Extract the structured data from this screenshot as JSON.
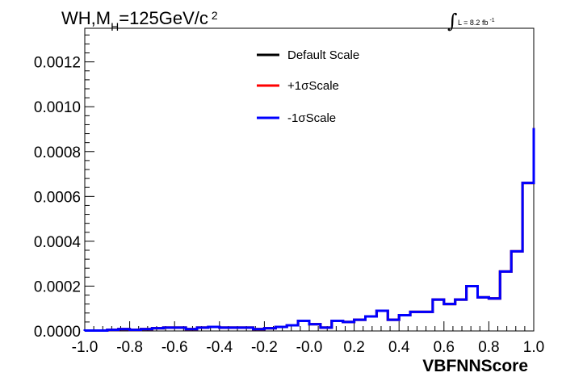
{
  "chart_data": {
    "type": "line",
    "title_main": "WH,M",
    "title_sub": "H",
    "title_rest": "=125GeV/c",
    "title_sup": "2",
    "lumi_label": "L = 8.2 fb",
    "lumi_sup": "-1",
    "xlabel": "VBFNNScore",
    "xlim": [
      -1.0,
      1.0
    ],
    "ylim": [
      0.0,
      0.00135
    ],
    "x_ticks": [
      "-1.0",
      "-0.8",
      "-0.6",
      "-0.4",
      "-0.2",
      "-0.0",
      "0.2",
      "0.4",
      "0.6",
      "0.8",
      "1.0"
    ],
    "y_ticks": [
      "0.0000",
      "0.0002",
      "0.0004",
      "0.0006",
      "0.0008",
      "0.0010",
      "0.0012"
    ],
    "legend_position": "top-center",
    "bin_edges": [
      -1.0,
      -0.95,
      -0.9,
      -0.85,
      -0.8,
      -0.75,
      -0.7,
      -0.65,
      -0.6,
      -0.55,
      -0.5,
      -0.45,
      -0.4,
      -0.35,
      -0.3,
      -0.25,
      -0.2,
      -0.15,
      -0.1,
      -0.05,
      0.0,
      0.05,
      0.1,
      0.15,
      0.2,
      0.25,
      0.3,
      0.35,
      0.4,
      0.45,
      0.5,
      0.55,
      0.6,
      0.65,
      0.7,
      0.75,
      0.8,
      0.85,
      0.9,
      0.95,
      1.0
    ],
    "series": [
      {
        "name": "Default Scale",
        "color": "#000000",
        "values": [
          2e-06,
          2e-06,
          5e-06,
          8e-06,
          5e-06,
          8e-06,
          1.2e-05,
          1.5e-05,
          1.5e-05,
          8e-06,
          1.5e-05,
          1.8e-05,
          1.5e-05,
          1.5e-05,
          1.5e-05,
          8e-06,
          1.2e-05,
          1.8e-05,
          2.5e-05,
          4.5e-05,
          3e-05,
          1.5e-05,
          4.5e-05,
          4e-05,
          5e-05,
          6.5e-05,
          9e-05,
          5e-05,
          7e-05,
          8.5e-05,
          8.5e-05,
          0.00014,
          0.00012,
          0.00014,
          0.0002,
          0.00015,
          0.000145,
          0.000265,
          0.000355,
          0.00066,
          0.000905
        ]
      },
      {
        "name": "+1σScale",
        "color": "#ff0000",
        "values": [
          2e-06,
          2e-06,
          5e-06,
          8e-06,
          5e-06,
          8e-06,
          1.2e-05,
          1.5e-05,
          1.5e-05,
          8e-06,
          1.5e-05,
          1.8e-05,
          1.5e-05,
          1.5e-05,
          1.5e-05,
          8e-06,
          1.2e-05,
          1.8e-05,
          2.5e-05,
          4.5e-05,
          3e-05,
          1.5e-05,
          4.5e-05,
          4e-05,
          5e-05,
          6.5e-05,
          9e-05,
          5e-05,
          7e-05,
          8.5e-05,
          8.5e-05,
          0.00014,
          0.00012,
          0.00014,
          0.0002,
          0.00015,
          0.000145,
          0.000265,
          0.000355,
          0.00066,
          0.000905
        ]
      },
      {
        "name": "-1σScale",
        "color": "#0000ff",
        "values": [
          2e-06,
          2e-06,
          5e-06,
          8e-06,
          5e-06,
          8e-06,
          1.2e-05,
          1.5e-05,
          1.5e-05,
          8e-06,
          1.5e-05,
          1.8e-05,
          1.5e-05,
          1.5e-05,
          1.5e-05,
          8e-06,
          1.2e-05,
          1.8e-05,
          2.5e-05,
          4.5e-05,
          3e-05,
          1.5e-05,
          4.5e-05,
          4e-05,
          5e-05,
          6.5e-05,
          9e-05,
          5e-05,
          7e-05,
          8.5e-05,
          8.5e-05,
          0.00014,
          0.00012,
          0.00014,
          0.0002,
          0.00015,
          0.000145,
          0.000265,
          0.000355,
          0.00066,
          0.000905
        ]
      }
    ]
  }
}
